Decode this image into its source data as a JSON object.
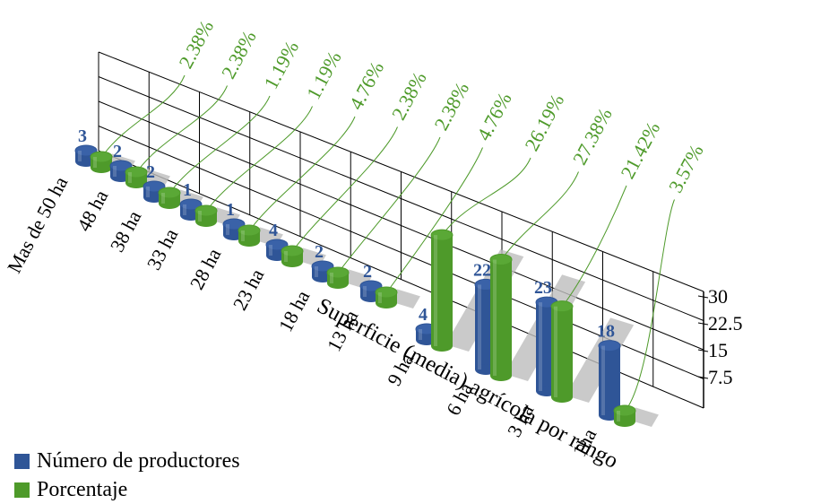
{
  "chart_data": {
    "type": "bar",
    "xlabel": "Superficie (media) agrícola por rango",
    "categories": [
      "Mas de 50 ha",
      "48 ha",
      "38 ha",
      "33 ha",
      "28 ha",
      "23 ha",
      "18 ha",
      "13 ha",
      "9 ha",
      "6 ha",
      "3 ha",
      "1ha"
    ],
    "series": [
      {
        "name": "Número de productores",
        "color": "#2F5597",
        "values": [
          3,
          2,
          2,
          1,
          1,
          4,
          2,
          2,
          4,
          22,
          23,
          18
        ],
        "labels": [
          "3",
          "2",
          "2",
          "1",
          "1",
          "4",
          "2",
          "2",
          "4",
          "22",
          "23",
          "18"
        ]
      },
      {
        "name": "Porcentaje",
        "color": "#4E9A2A",
        "values": [
          2.38,
          2.38,
          1.19,
          1.19,
          4.76,
          2.38,
          2.38,
          4.76,
          26.19,
          27.38,
          21.42,
          3.57
        ],
        "labels": [
          "2.38%",
          "2.38%",
          "1.19%",
          "1.19%",
          "4.76%",
          "2.38%",
          "2.38%",
          "4.76%",
          "26.19%",
          "27.38%",
          "21.42%",
          "3.57%"
        ]
      }
    ],
    "yticks": [
      "7.5",
      "15",
      "22.5",
      "30"
    ],
    "ylim": [
      0,
      30
    ],
    "grid": true,
    "legend_position": "bottom-left"
  }
}
